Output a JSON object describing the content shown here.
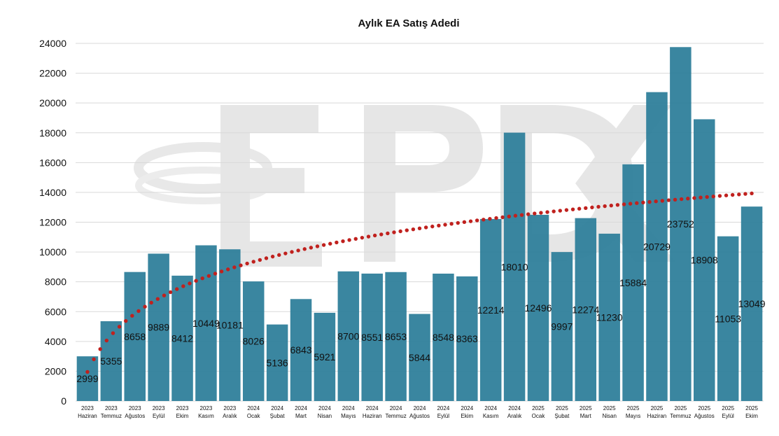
{
  "chart_data": {
    "type": "bar",
    "title": "Aylık EA Satış Adedi",
    "xlabel": "",
    "ylabel": "",
    "ylim": [
      0,
      24000
    ],
    "yticks": [
      0,
      2000,
      4000,
      6000,
      8000,
      10000,
      12000,
      14000,
      16000,
      18000,
      20000,
      22000,
      24000
    ],
    "grid": true,
    "legend": "none",
    "trendline": "logarithmic (dotted)",
    "watermark": "EPDK",
    "colors": {
      "bar": "#2b7d99",
      "trend": "#c0211e"
    },
    "categories": [
      {
        "year": "2023",
        "month": "Haziran"
      },
      {
        "year": "2023",
        "month": "Temmuz"
      },
      {
        "year": "2023",
        "month": "Ağustos"
      },
      {
        "year": "2023",
        "month": "Eylül"
      },
      {
        "year": "2023",
        "month": "Ekim"
      },
      {
        "year": "2023",
        "month": "Kasım"
      },
      {
        "year": "2023",
        "month": "Aralık"
      },
      {
        "year": "2024",
        "month": "Ocak"
      },
      {
        "year": "2024",
        "month": "Şubat"
      },
      {
        "year": "2024",
        "month": "Mart"
      },
      {
        "year": "2024",
        "month": "Nisan"
      },
      {
        "year": "2024",
        "month": "Mayıs"
      },
      {
        "year": "2024",
        "month": "Haziran"
      },
      {
        "year": "2024",
        "month": "Temmuz"
      },
      {
        "year": "2024",
        "month": "Ağustos"
      },
      {
        "year": "2024",
        "month": "Eylül"
      },
      {
        "year": "2024",
        "month": "Ekim"
      },
      {
        "year": "2024",
        "month": "Kasım"
      },
      {
        "year": "2024",
        "month": "Aralık"
      },
      {
        "year": "2025",
        "month": "Ocak"
      },
      {
        "year": "2025",
        "month": "Şubat"
      },
      {
        "year": "2025",
        "month": "Mart"
      },
      {
        "year": "2025",
        "month": "Nisan"
      },
      {
        "year": "2025",
        "month": "Mayıs"
      },
      {
        "year": "2025",
        "month": "Haziran"
      },
      {
        "year": "2025",
        "month": "Temmuz"
      },
      {
        "year": "2025",
        "month": "Ağustos"
      },
      {
        "year": "2025",
        "month": "Eylül"
      },
      {
        "year": "2025",
        "month": "Ekim"
      }
    ],
    "values": [
      2999,
      5355,
      8658,
      9889,
      8412,
      10449,
      10181,
      8026,
      5136,
      6843,
      5921,
      8700,
      8551,
      8653,
      5844,
      8548,
      8363,
      12214,
      18010,
      12496,
      9997,
      12274,
      11230,
      15884,
      20729,
      23752,
      18908,
      11053,
      13049
    ],
    "data_labels": [
      "2999",
      "5355",
      "8658",
      "9889",
      "8412",
      "10449",
      "10181",
      "8026",
      "5136",
      "6843",
      "5921",
      "8700",
      "8551",
      "8653",
      "5844",
      "8548",
      "8363",
      "12214",
      "18010",
      "12496",
      "9997",
      "12274",
      "11230",
      "15884",
      "20729",
      "23752",
      "18908",
      "11053",
      "13049"
    ]
  }
}
